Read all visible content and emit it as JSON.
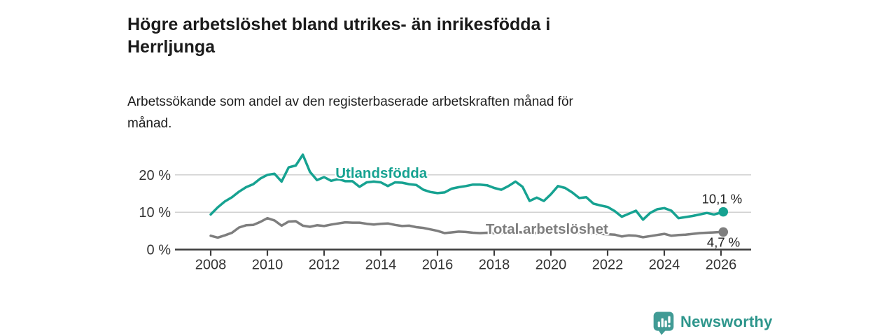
{
  "chart_data": {
    "type": "line",
    "title": "Högre arbetslöshet bland utrikes- än inrikesfödda i Herrljunga",
    "title_lines": [
      "Högre arbetslöshet bland utrikes- än inrikesfödda i",
      "Herrljunga"
    ],
    "subtitle": "Arbetssökande som andel av den registerbaserade arbetskraften månad för månad.",
    "subtitle_lines": [
      "Arbetssökande som andel av den registerbaserade arbetskraften månad för",
      "månad."
    ],
    "x_start": 2008,
    "x_step": 0.25,
    "xlim": [
      2006.75,
      2027.05
    ],
    "ylim": [
      0,
      27.5
    ],
    "grid": "horizontal",
    "legend_position": "inline-labels",
    "y_ticks": [
      {
        "value": 0,
        "label": "0 %"
      },
      {
        "value": 10,
        "label": "10 %"
      },
      {
        "value": 20,
        "label": "20 %"
      }
    ],
    "x_ticks": [
      {
        "value": 2008,
        "label": "2008"
      },
      {
        "value": 2010,
        "label": "2010"
      },
      {
        "value": 2012,
        "label": "2012"
      },
      {
        "value": 2014,
        "label": "2014"
      },
      {
        "value": 2016,
        "label": "2016"
      },
      {
        "value": 2018,
        "label": "2018"
      },
      {
        "value": 2020,
        "label": "2020"
      },
      {
        "value": 2022,
        "label": "2022"
      },
      {
        "value": 2024,
        "label": "2024"
      },
      {
        "value": 2026,
        "label": "2026"
      }
    ],
    "series": [
      {
        "name": "Utlandsfödda",
        "color": "#16A291",
        "end_label": "10,1 %",
        "end_value": 10.1,
        "x_end": 2026.08,
        "label_anchor": {
          "x": 2012.4,
          "y": 20.5
        },
        "values": [
          9.4,
          11.3,
          12.9,
          14.0,
          15.5,
          16.7,
          17.5,
          19.0,
          20.0,
          20.3,
          18.2,
          22.0,
          22.5,
          25.4,
          20.8,
          18.6,
          19.4,
          18.4,
          18.9,
          18.3,
          18.3,
          16.8,
          18.0,
          18.2,
          18.0,
          17.0,
          18.0,
          17.9,
          17.5,
          17.3,
          16.0,
          15.4,
          15.1,
          15.3,
          16.3,
          16.7,
          17.0,
          17.4,
          17.4,
          17.2,
          16.5,
          16.0,
          17.0,
          18.2,
          16.8,
          13.0,
          13.9,
          13.0,
          14.8,
          17.0,
          16.5,
          15.3,
          13.8,
          14.0,
          12.3,
          11.8,
          11.4,
          10.3,
          8.8,
          9.6,
          10.4,
          8.0,
          9.8,
          10.8,
          11.1,
          10.4,
          8.4,
          8.7,
          9.0,
          9.4,
          9.8,
          9.4,
          9.9,
          10.1
        ]
      },
      {
        "name": "Total arbetslöshet",
        "color": "#7E7E7E",
        "end_label": "4,7 %",
        "end_value": 4.7,
        "x_end": 2026.08,
        "label_anchor": {
          "x": 2017.7,
          "y": 5.5
        },
        "values": [
          3.7,
          3.2,
          3.8,
          4.5,
          5.9,
          6.5,
          6.6,
          7.4,
          8.4,
          7.8,
          6.4,
          7.5,
          7.6,
          6.4,
          6.1,
          6.5,
          6.3,
          6.7,
          7.0,
          7.3,
          7.2,
          7.2,
          6.9,
          6.7,
          6.9,
          7.0,
          6.6,
          6.3,
          6.4,
          6.0,
          5.8,
          5.4,
          5.0,
          4.4,
          4.6,
          4.8,
          4.7,
          4.5,
          4.4,
          4.5,
          4.4,
          4.5,
          4.6,
          4.7,
          4.6,
          4.5,
          4.4,
          4.5,
          4.6,
          4.8,
          4.7,
          4.6,
          4.5,
          4.4,
          4.3,
          4.2,
          4.1,
          4.0,
          3.5,
          3.8,
          3.7,
          3.3,
          3.6,
          3.9,
          4.2,
          3.7,
          3.9,
          4.0,
          4.2,
          4.4,
          4.5,
          4.6,
          4.7,
          4.7
        ]
      }
    ],
    "colors": {
      "axis": "#3C3C3C",
      "grid": "#CCCCCC",
      "tick_label": "#333333",
      "end_label": "#222222"
    }
  },
  "footer": {
    "brand": "Newsworthy",
    "logo_color": "#419B95",
    "text_color": "#2E968C"
  }
}
